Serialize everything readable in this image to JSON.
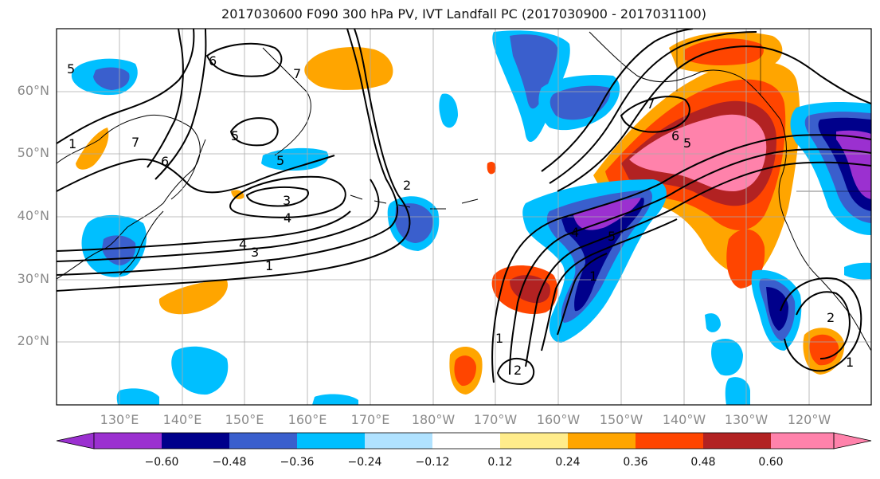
{
  "title": "2017030600 F090 300 hPa PV, IVT Landfall PC (2017030900 - 2017031100)",
  "lat_labels": [
    "60°N",
    "50°N",
    "40°N",
    "30°N",
    "20°N"
  ],
  "lon_labels": [
    "130°E",
    "140°E",
    "150°E",
    "160°E",
    "170°E",
    "180°W",
    "170°W",
    "160°W",
    "150°W",
    "140°W",
    "130°W",
    "120°W"
  ],
  "contour_labels": [
    "5",
    "6",
    "7",
    "6",
    "1",
    "7",
    "5",
    "5",
    "3",
    "4",
    "4",
    "3",
    "1",
    "2",
    "7",
    "6",
    "5",
    "4",
    "5",
    "1",
    "1",
    "2",
    "2",
    "1"
  ],
  "colorbar": {
    "ticks": [
      "−0.60",
      "−0.48",
      "−0.36",
      "−0.24",
      "−0.12",
      "0.12",
      "0.24",
      "0.36",
      "0.48",
      "0.60"
    ],
    "colors": [
      "#9b30d0",
      "#00008b",
      "#3a5fcd",
      "#00bfff",
      "#b0e2ff",
      "#ffffff",
      "#ffec8b",
      "#ffa500",
      "#ff4500",
      "#b22222",
      "#ff82ab"
    ]
  }
}
